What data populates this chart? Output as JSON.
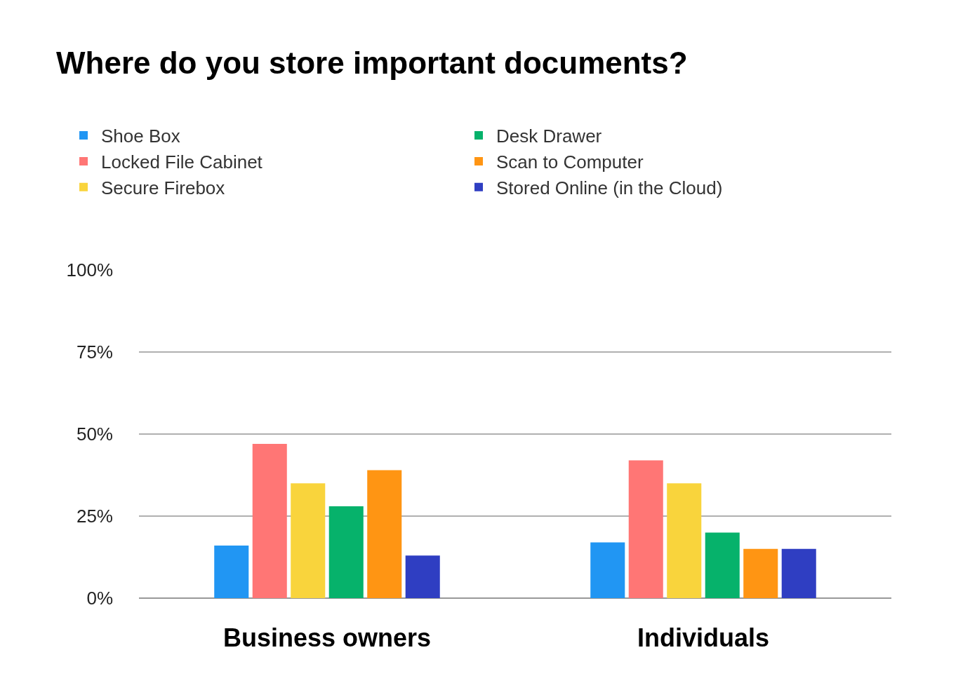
{
  "chart_data": {
    "type": "bar",
    "title": "Where do you store important documents?",
    "categories": [
      "Business owners",
      "Individuals"
    ],
    "series": [
      {
        "name": "Shoe Box",
        "color": "#2196f3",
        "values": [
          16,
          17
        ]
      },
      {
        "name": "Locked File Cabinet",
        "color": "#ff7675",
        "values": [
          47,
          42
        ]
      },
      {
        "name": "Secure Firebox",
        "color": "#f9d43c",
        "values": [
          35,
          35
        ]
      },
      {
        "name": "Desk Drawer",
        "color": "#06b26b",
        "values": [
          28,
          20
        ]
      },
      {
        "name": "Scan to Computer",
        "color": "#ff9513",
        "values": [
          39,
          15
        ]
      },
      {
        "name": "Stored Online (in the Cloud)",
        "color": "#2f3ec2",
        "values": [
          13,
          15
        ]
      }
    ],
    "ylim": [
      0,
      100
    ],
    "yticks": [
      {
        "value": 0,
        "label": "0%"
      },
      {
        "value": 25,
        "label": "25%"
      },
      {
        "value": 50,
        "label": "50%"
      },
      {
        "value": 75,
        "label": "75%"
      },
      {
        "value": 100,
        "label": "100%"
      }
    ],
    "grid": "y",
    "legend": "top left"
  }
}
